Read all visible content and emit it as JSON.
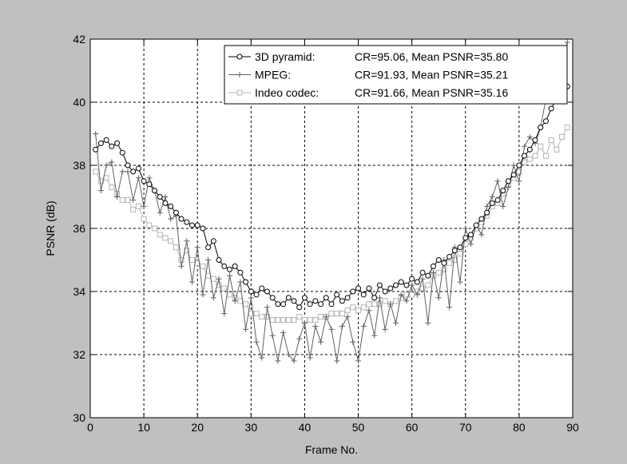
{
  "chart_data": {
    "type": "line",
    "title": "",
    "xlabel": "Frame No.",
    "ylabel": "PSNR (dB)",
    "xlim": [
      0,
      90
    ],
    "ylim": [
      30,
      42
    ],
    "xticks": [
      0,
      10,
      20,
      30,
      40,
      50,
      60,
      70,
      80,
      90
    ],
    "yticks": [
      30,
      32,
      34,
      36,
      38,
      40,
      42
    ],
    "grid": true,
    "legend_position": "top-right",
    "series": [
      {
        "name": "3D pyramid:",
        "stats": "CR=95.06, Mean PSNR=35.80",
        "color": "#000000",
        "marker": "circle",
        "x": [
          1,
          2,
          3,
          4,
          5,
          6,
          7,
          8,
          9,
          10,
          11,
          12,
          13,
          14,
          15,
          16,
          17,
          18,
          19,
          20,
          21,
          22,
          23,
          24,
          25,
          26,
          27,
          28,
          29,
          30,
          31,
          32,
          33,
          34,
          35,
          36,
          37,
          38,
          39,
          40,
          41,
          42,
          43,
          44,
          45,
          46,
          47,
          48,
          49,
          50,
          51,
          52,
          53,
          54,
          55,
          56,
          57,
          58,
          59,
          60,
          61,
          62,
          63,
          64,
          65,
          66,
          67,
          68,
          69,
          70,
          71,
          72,
          73,
          74,
          75,
          76,
          77,
          78,
          79,
          80,
          81,
          82,
          83,
          84,
          85,
          86,
          87,
          88,
          89
        ],
        "y": [
          38.5,
          38.7,
          38.8,
          38.6,
          38.7,
          38.4,
          38.0,
          37.8,
          37.9,
          37.5,
          37.4,
          37.2,
          37.0,
          36.8,
          36.7,
          36.5,
          36.3,
          36.2,
          36.1,
          36.1,
          36.0,
          35.4,
          35.6,
          35.0,
          34.8,
          34.7,
          34.8,
          34.6,
          34.3,
          34.0,
          33.9,
          34.1,
          34.0,
          33.8,
          33.6,
          33.6,
          33.8,
          33.7,
          33.5,
          33.8,
          33.6,
          33.7,
          33.6,
          33.8,
          33.6,
          33.9,
          33.7,
          33.8,
          34.0,
          34.1,
          33.9,
          34.1,
          33.8,
          34.2,
          34.0,
          34.1,
          34.2,
          34.3,
          34.2,
          34.4,
          34.3,
          34.6,
          34.5,
          34.8,
          35.0,
          34.9,
          35.1,
          35.3,
          35.4,
          35.7,
          35.8,
          36.1,
          36.3,
          36.5,
          36.8,
          36.9,
          37.2,
          37.5,
          37.7,
          38.0,
          38.3,
          38.5,
          38.8,
          39.2,
          39.4,
          39.8,
          40.1,
          40.3,
          40.5
        ]
      },
      {
        "name": "MPEG:",
        "stats": "CR=91.93, Mean PSNR=35.21",
        "color": "#606060",
        "marker": "plus",
        "x": [
          1,
          2,
          3,
          4,
          5,
          6,
          7,
          8,
          9,
          10,
          11,
          12,
          13,
          14,
          15,
          16,
          17,
          18,
          19,
          20,
          21,
          22,
          23,
          24,
          25,
          26,
          27,
          28,
          29,
          30,
          31,
          32,
          33,
          34,
          35,
          36,
          37,
          38,
          39,
          40,
          41,
          42,
          43,
          44,
          45,
          46,
          47,
          48,
          49,
          50,
          51,
          52,
          53,
          54,
          55,
          56,
          57,
          58,
          59,
          60,
          61,
          62,
          63,
          64,
          65,
          66,
          67,
          68,
          69,
          70,
          71,
          72,
          73,
          74,
          75,
          76,
          77,
          78,
          79,
          80,
          81,
          82,
          83,
          84,
          85,
          86,
          87,
          88,
          89
        ],
        "y": [
          39.0,
          37.2,
          38.0,
          38.1,
          37.0,
          37.8,
          37.8,
          36.9,
          37.6,
          36.7,
          37.6,
          37.2,
          36.5,
          37.0,
          36.3,
          36.4,
          34.8,
          35.6,
          34.3,
          35.4,
          33.9,
          35.0,
          33.8,
          34.4,
          33.3,
          34.5,
          33.7,
          34.3,
          32.8,
          33.8,
          32.4,
          31.9,
          33.5,
          32.6,
          31.8,
          32.7,
          32.0,
          31.8,
          32.5,
          33.0,
          31.9,
          32.9,
          32.4,
          33.2,
          32.8,
          31.8,
          32.9,
          33.2,
          32.4,
          31.8,
          32.9,
          33.4,
          32.6,
          33.8,
          32.8,
          33.6,
          33.0,
          33.9,
          33.7,
          34.2,
          33.9,
          34.4,
          33.0,
          34.6,
          33.8,
          35.0,
          33.5,
          35.4,
          34.3,
          36.0,
          35.5,
          36.1,
          35.8,
          36.7,
          37.0,
          37.5,
          36.7,
          37.3,
          38.0,
          37.5,
          38.6,
          38.9,
          38.7,
          39.2,
          40.1,
          40.4,
          40.8,
          41.4,
          41.9
        ]
      },
      {
        "name": "Indeo codec:",
        "stats": "CR=91.66, Mean PSNR=35.16",
        "color": "#b4b4b4",
        "marker": "square",
        "x": [
          1,
          2,
          3,
          4,
          5,
          6,
          7,
          8,
          9,
          10,
          11,
          12,
          13,
          14,
          15,
          16,
          17,
          18,
          19,
          20,
          21,
          22,
          23,
          24,
          25,
          26,
          27,
          28,
          29,
          30,
          31,
          32,
          33,
          34,
          35,
          36,
          37,
          38,
          39,
          40,
          41,
          42,
          43,
          44,
          45,
          46,
          47,
          48,
          49,
          50,
          51,
          52,
          53,
          54,
          55,
          56,
          57,
          58,
          59,
          60,
          61,
          62,
          63,
          64,
          65,
          66,
          67,
          68,
          69,
          70,
          71,
          72,
          73,
          74,
          75,
          76,
          77,
          78,
          79,
          80,
          81,
          82,
          83,
          84,
          85,
          86,
          87,
          88,
          89
        ],
        "y": [
          37.8,
          37.5,
          37.6,
          37.3,
          37.1,
          36.9,
          36.9,
          36.6,
          36.7,
          36.3,
          36.1,
          36.0,
          35.8,
          35.7,
          35.6,
          35.4,
          35.0,
          35.3,
          35.0,
          34.9,
          34.8,
          34.5,
          34.4,
          34.2,
          34.1,
          33.9,
          33.8,
          33.7,
          33.6,
          33.3,
          33.3,
          33.2,
          33.2,
          33.1,
          33.1,
          33.1,
          33.1,
          33.1,
          33.2,
          33.1,
          33.1,
          33.1,
          33.2,
          33.2,
          33.3,
          33.3,
          33.3,
          33.4,
          33.5,
          33.4,
          33.5,
          33.6,
          33.6,
          33.6,
          33.7,
          33.6,
          33.7,
          33.8,
          33.9,
          33.9,
          34.0,
          34.1,
          34.2,
          34.5,
          34.6,
          34.7,
          34.9,
          35.0,
          35.2,
          35.5,
          35.7,
          36.0,
          36.2,
          36.4,
          36.7,
          36.8,
          37.1,
          37.4,
          37.6,
          37.8,
          38.1,
          38.2,
          38.3,
          38.6,
          38.3,
          38.8,
          38.5,
          38.9,
          39.2
        ]
      }
    ]
  }
}
